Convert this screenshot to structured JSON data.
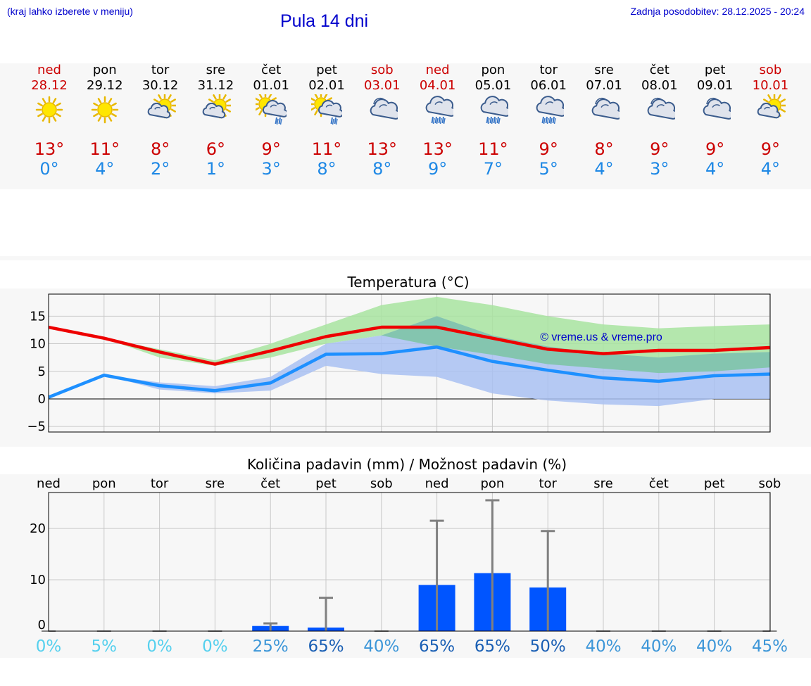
{
  "header": {
    "hint": "(kraj lahko izberete v meniju)",
    "title": "Pula 14 dni",
    "updated": "Zadnja posodobitev: 28.12.2025 - 20:24"
  },
  "days": [
    {
      "name": "ned",
      "date": "28.12",
      "weekend": true,
      "icon": "sun-icon",
      "max": "13°",
      "min": "0°"
    },
    {
      "name": "pon",
      "date": "29.12",
      "weekend": false,
      "icon": "sun-icon",
      "max": "11°",
      "min": "4°"
    },
    {
      "name": "tor",
      "date": "30.12",
      "weekend": false,
      "icon": "sun-cloud-icon",
      "max": "8°",
      "min": "2°"
    },
    {
      "name": "sre",
      "date": "31.12",
      "weekend": false,
      "icon": "sun-cloud-icon",
      "max": "6°",
      "min": "1°"
    },
    {
      "name": "čet",
      "date": "01.01",
      "weekend": false,
      "icon": "sun-cloud-rain-icon",
      "max": "9°",
      "min": "3°"
    },
    {
      "name": "pet",
      "date": "02.01",
      "weekend": false,
      "icon": "sun-cloud-rain-icon",
      "max": "11°",
      "min": "8°"
    },
    {
      "name": "sob",
      "date": "03.01",
      "weekend": true,
      "icon": "cloud-icon",
      "max": "13°",
      "min": "8°"
    },
    {
      "name": "ned",
      "date": "04.01",
      "weekend": true,
      "icon": "cloud-rain-icon",
      "max": "13°",
      "min": "9°"
    },
    {
      "name": "pon",
      "date": "05.01",
      "weekend": false,
      "icon": "cloud-rain-icon",
      "max": "11°",
      "min": "7°"
    },
    {
      "name": "tor",
      "date": "06.01",
      "weekend": false,
      "icon": "cloud-rain-icon",
      "max": "9°",
      "min": "5°"
    },
    {
      "name": "sre",
      "date": "07.01",
      "weekend": false,
      "icon": "cloud-icon",
      "max": "8°",
      "min": "4°"
    },
    {
      "name": "čet",
      "date": "08.01",
      "weekend": false,
      "icon": "cloud-icon",
      "max": "9°",
      "min": "3°"
    },
    {
      "name": "pet",
      "date": "09.01",
      "weekend": false,
      "icon": "cloud-icon",
      "max": "9°",
      "min": "4°"
    },
    {
      "name": "sob",
      "date": "10.01",
      "weekend": true,
      "icon": "sun-cloud-icon",
      "max": "9°",
      "min": "4°"
    }
  ],
  "colors": {
    "max": "#ee0000",
    "min": "#1e90ff",
    "maxBand": "#a8e4a0",
    "minBand": "#a9c1f2",
    "overlap": "#80c4a8",
    "bar": "#0055ff",
    "err": "#808080",
    "watermark": "#0000cc"
  },
  "chart_data": [
    {
      "type": "line",
      "title": "Temperatura (°C)",
      "watermark": "© vreme.us & vreme.pro",
      "ylim": [
        -6,
        19
      ],
      "yticks": [
        -5,
        0,
        5,
        10,
        15
      ],
      "ytick_labels": [
        "−5",
        "0",
        "5",
        "10",
        "15"
      ],
      "x": [
        0,
        1,
        2,
        3,
        4,
        5,
        6,
        7,
        8,
        9,
        10,
        11,
        12,
        13
      ],
      "series": [
        {
          "name": "max",
          "values": [
            13,
            11,
            8.5,
            6.3,
            8.7,
            11.3,
            13,
            13,
            11,
            9,
            8.2,
            8.8,
            8.8,
            9.3
          ]
        },
        {
          "name": "min",
          "values": [
            0.3,
            4.3,
            2.4,
            1.5,
            2.9,
            8.1,
            8.2,
            9.4,
            6.8,
            5.2,
            3.8,
            3.2,
            4.2,
            4.5
          ]
        },
        {
          "name": "max_band_high",
          "values": [
            13,
            11,
            9,
            7,
            10,
            13.5,
            17,
            18.5,
            17,
            15,
            13.5,
            12.8,
            13.2,
            13.5
          ]
        },
        {
          "name": "max_band_low",
          "values": [
            13,
            11,
            7.5,
            6,
            7.5,
            10,
            11.5,
            9.5,
            8,
            6.3,
            5.5,
            4.7,
            5,
            5.7
          ]
        },
        {
          "name": "min_band_high",
          "values": [
            0.3,
            4.3,
            3,
            2.3,
            4,
            10,
            11.5,
            15,
            11.5,
            9.5,
            8.2,
            7.5,
            8.2,
            8.5
          ]
        },
        {
          "name": "min_band_low",
          "values": [
            0.3,
            4.3,
            1.7,
            1,
            1.5,
            6,
            4.5,
            4,
            1,
            -0.3,
            -1,
            -1.3,
            0,
            0
          ]
        }
      ]
    },
    {
      "type": "bar",
      "title": "Količina padavin (mm) / Možnost padavin (%)",
      "ylim": [
        0,
        27
      ],
      "yticks": [
        0,
        10,
        20
      ],
      "categories": [
        "ned",
        "pon",
        "tor",
        "sre",
        "čet",
        "pet",
        "sob",
        "ned",
        "pon",
        "tor",
        "sre",
        "čet",
        "pet",
        "sob"
      ],
      "values": [
        0,
        0,
        0,
        0,
        1,
        0.7,
        0,
        9,
        11.3,
        8.5,
        0,
        0,
        0,
        0
      ],
      "err_high": [
        0,
        0,
        0,
        0,
        1.5,
        6.5,
        0,
        21.5,
        25.5,
        19.5,
        0,
        0,
        0,
        0
      ],
      "probabilities": [
        "0%",
        "5%",
        "0%",
        "0%",
        "25%",
        "65%",
        "40%",
        "65%",
        "65%",
        "50%",
        "40%",
        "40%",
        "40%",
        "45%"
      ],
      "prob_colors": [
        "#55d0ee",
        "#55d0ee",
        "#55d0ee",
        "#55d0ee",
        "#3c96d8",
        "#1a5fb4",
        "#3c96d8",
        "#1a5fb4",
        "#1a5fb4",
        "#1a5fb4",
        "#3c96d8",
        "#3c96d8",
        "#3c96d8",
        "#3c96d8"
      ]
    }
  ]
}
